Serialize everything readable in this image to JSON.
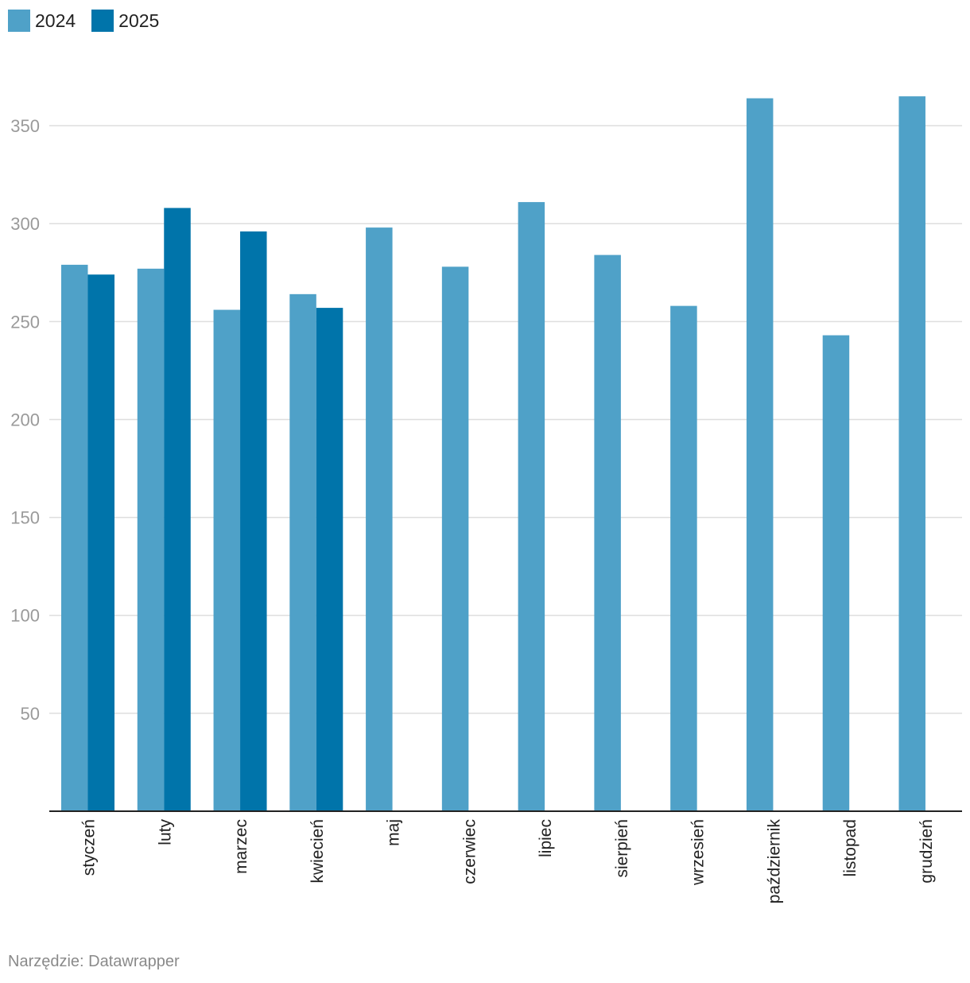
{
  "chart_data": {
    "type": "bar",
    "categories": [
      "styczeń",
      "luty",
      "marzec",
      "kwiecień",
      "maj",
      "czerwiec",
      "lipiec",
      "sierpień",
      "wrzesień",
      "październik",
      "listopad",
      "grudzień"
    ],
    "series": [
      {
        "name": "2024",
        "color": "#4fa1c8",
        "values": [
          279,
          277,
          256,
          264,
          298,
          278,
          311,
          284,
          258,
          364,
          243,
          365
        ]
      },
      {
        "name": "2025",
        "color": "#0074aa",
        "values": [
          274,
          308,
          296,
          257,
          null,
          null,
          null,
          null,
          null,
          null,
          null,
          null
        ]
      }
    ],
    "yticks": [
      50,
      100,
      150,
      200,
      250,
      300,
      350
    ],
    "ylim": [
      0,
      380
    ],
    "grid": true,
    "legend_position": "top-left"
  },
  "footer": {
    "source": "Narzędzie: Datawrapper"
  }
}
